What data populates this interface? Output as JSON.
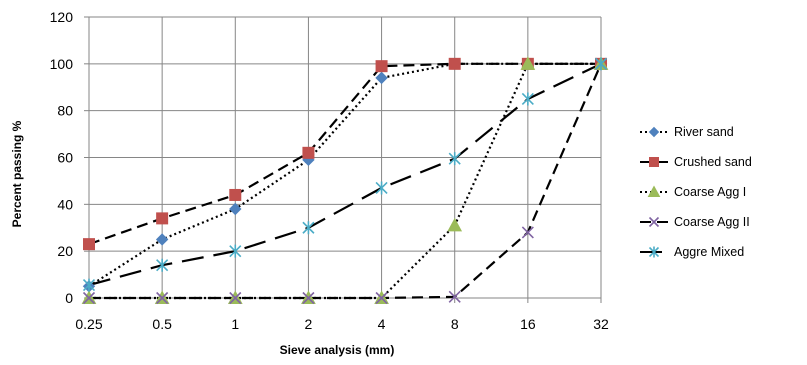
{
  "chart_data": {
    "type": "line",
    "title": "",
    "xlabel": "Sieve analysis  (mm)",
    "ylabel": "Percent passing %",
    "categories": [
      "0.25",
      "0.5",
      "1",
      "2",
      "4",
      "8",
      "16",
      "32"
    ],
    "ylim": [
      0,
      120
    ],
    "yticks": [
      0,
      20,
      40,
      60,
      80,
      100,
      120
    ],
    "grid": true,
    "legend_position": "right",
    "series": [
      {
        "name": "River sand",
        "values": [
          5,
          25,
          38,
          59,
          94,
          100,
          100,
          100
        ],
        "color": "#4F81BD",
        "marker": "diamond",
        "dash": "dotted"
      },
      {
        "name": "Crushed sand",
        "values": [
          23,
          34,
          44,
          62,
          99,
          100,
          100,
          100
        ],
        "color": "#C0504D",
        "marker": "square",
        "dash": "dashed"
      },
      {
        "name": "Coarse Agg I",
        "values": [
          0,
          0,
          0,
          0,
          0,
          31,
          100,
          100
        ],
        "color": "#9BBB59",
        "marker": "triangle",
        "dash": "dotted"
      },
      {
        "name": "Coarse Agg II",
        "values": [
          0,
          0,
          0,
          0,
          0,
          0.5,
          28,
          100
        ],
        "color": "#8064A2",
        "marker": "x",
        "dash": "dashed"
      },
      {
        "name": "Aggre Mixed",
        "values": [
          5.5,
          14,
          20,
          30,
          47,
          59.5,
          85,
          100
        ],
        "color": "#4BACC6",
        "marker": "star",
        "dash": "longdash"
      }
    ]
  }
}
